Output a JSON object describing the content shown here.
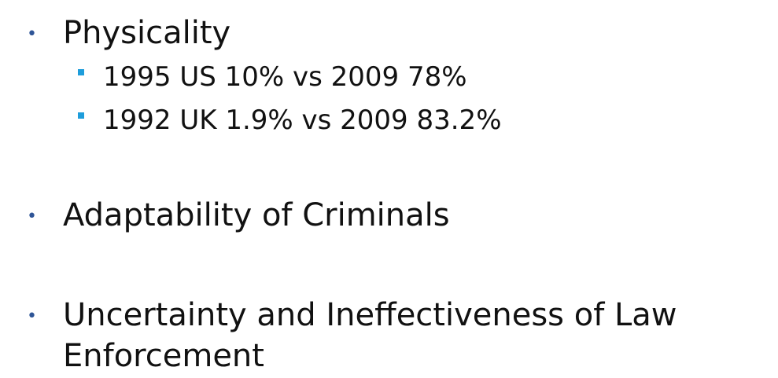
{
  "slide": {
    "bullets": [
      {
        "text": "Physicality",
        "subitems": [
          "1995 US 10% vs 2009 78%",
          "1992 UK 1.9% vs 2009 83.2%"
        ]
      },
      {
        "text": "Adaptability of Criminals"
      },
      {
        "text_line1": "Uncertainty and Ineffectiveness of Law",
        "text_line2": "Enforcement"
      }
    ]
  }
}
